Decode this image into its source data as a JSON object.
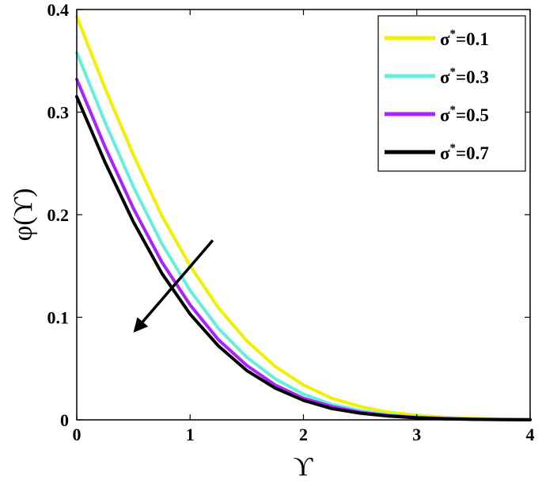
{
  "chart_data": {
    "type": "line",
    "title": "",
    "xlabel": "ϒ",
    "ylabel": "φ(ϒ)",
    "xlim": [
      0,
      4
    ],
    "ylim": [
      0,
      0.4
    ],
    "xticks": [
      0,
      1,
      2,
      3,
      4
    ],
    "yticks": [
      0,
      0.1,
      0.2,
      0.3,
      0.4
    ],
    "xtick_labels": [
      "0",
      "1",
      "2",
      "3",
      "4"
    ],
    "ytick_labels": [
      "0",
      "0.1",
      "0.2",
      "0.3",
      "0.4"
    ],
    "grid": false,
    "legend_position": "top-right",
    "x": [
      0,
      0.25,
      0.5,
      0.75,
      1,
      1.25,
      1.5,
      1.75,
      2,
      2.25,
      2.5,
      2.75,
      3,
      3.25,
      3.5,
      3.75,
      4
    ],
    "series": [
      {
        "name": "σ*=0.1",
        "symbol": "σ",
        "sup": "*",
        "value_text": "=0.1",
        "color": "#f0f000",
        "values": [
          0.393,
          0.323,
          0.258,
          0.199,
          0.15,
          0.109,
          0.077,
          0.052,
          0.034,
          0.021,
          0.013,
          0.0075,
          0.0045,
          0.0025,
          0.0013,
          0.0006,
          0.0002
        ]
      },
      {
        "name": "σ*=0.3",
        "symbol": "σ",
        "sup": "*",
        "value_text": "=0.3",
        "color": "#66eedd",
        "values": [
          0.358,
          0.29,
          0.227,
          0.172,
          0.126,
          0.089,
          0.061,
          0.04,
          0.025,
          0.015,
          0.009,
          0.005,
          0.0028,
          0.0015,
          0.0008,
          0.0004,
          0.0001
        ]
      },
      {
        "name": "σ*=0.5",
        "symbol": "σ",
        "sup": "*",
        "value_text": "=0.5",
        "color": "#aa22ff",
        "values": [
          0.332,
          0.266,
          0.206,
          0.154,
          0.112,
          0.078,
          0.053,
          0.034,
          0.021,
          0.013,
          0.0075,
          0.0042,
          0.0023,
          0.0012,
          0.0006,
          0.0003,
          0.0001
        ]
      },
      {
        "name": "σ*=0.7",
        "symbol": "σ",
        "sup": "*",
        "value_text": "=0.7",
        "color": "#000000",
        "values": [
          0.315,
          0.251,
          0.193,
          0.143,
          0.103,
          0.072,
          0.048,
          0.031,
          0.019,
          0.011,
          0.0065,
          0.0036,
          0.0019,
          0.001,
          0.0005,
          0.0002,
          0.0001
        ]
      }
    ],
    "annotations": [
      {
        "type": "arrow",
        "from": [
          1.2,
          0.175
        ],
        "to": [
          0.5,
          0.085
        ],
        "color": "#000000"
      }
    ]
  }
}
